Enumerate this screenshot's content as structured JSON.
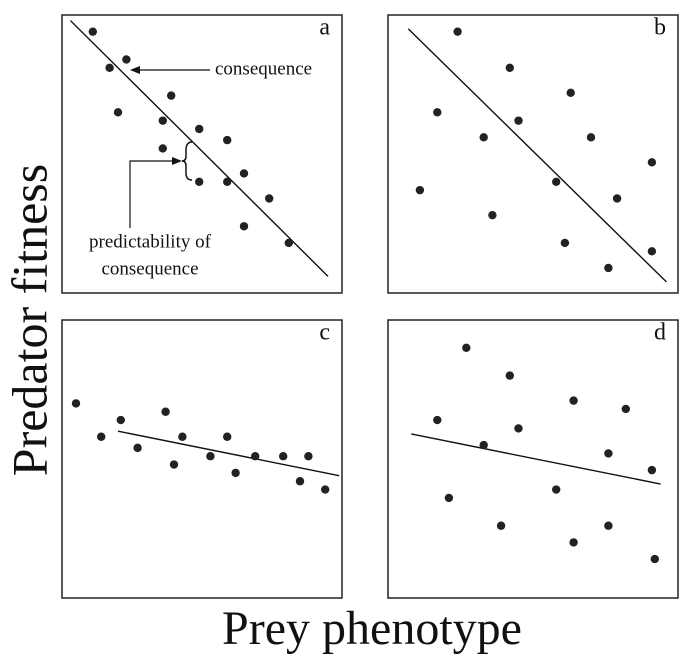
{
  "figure": {
    "y_label": "Predator fitness",
    "x_label": "Prey phenotype"
  },
  "chart_data": [
    {
      "type": "scatter",
      "label": "a",
      "color": "#222",
      "xlim": [
        0,
        100
      ],
      "ylim": [
        0,
        100
      ],
      "x": [
        11,
        17,
        23,
        20,
        39,
        36,
        49,
        36,
        59,
        49,
        59,
        65,
        74,
        65,
        81
      ],
      "y": [
        94,
        81,
        84,
        65,
        71,
        62,
        59,
        52,
        55,
        40,
        40,
        43,
        34,
        24,
        18
      ],
      "fit_line": {
        "x": [
          3,
          95
        ],
        "y": [
          98,
          6
        ]
      },
      "annotations": {
        "consequence": "consequence",
        "predictability": [
          "predictability of",
          "consequence"
        ]
      }
    },
    {
      "type": "scatter",
      "label": "b",
      "color": "#222",
      "xlim": [
        0,
        100
      ],
      "ylim": [
        0,
        100
      ],
      "x": [
        24,
        42,
        17,
        45,
        63,
        33,
        70,
        11,
        58,
        91,
        36,
        79,
        61,
        76,
        91
      ],
      "y": [
        94,
        81,
        65,
        62,
        72,
        56,
        56,
        37,
        40,
        47,
        28,
        34,
        18,
        9,
        15
      ],
      "fit_line": {
        "x": [
          7,
          96
        ],
        "y": [
          95,
          4
        ]
      }
    },
    {
      "type": "scatter",
      "label": "c",
      "color": "#222",
      "xlim": [
        0,
        100
      ],
      "ylim": [
        0,
        100
      ],
      "x": [
        5,
        14,
        21,
        27,
        37,
        43,
        40,
        53,
        59,
        62,
        69,
        79,
        88,
        85,
        94
      ],
      "y": [
        70,
        58,
        64,
        54,
        67,
        58,
        48,
        51,
        58,
        45,
        51,
        51,
        51,
        42,
        39
      ],
      "fit_line": {
        "x": [
          20,
          99
        ],
        "y": [
          60,
          44
        ]
      }
    },
    {
      "type": "scatter",
      "label": "d",
      "color": "#222",
      "xlim": [
        0,
        100
      ],
      "ylim": [
        0,
        100
      ],
      "x": [
        27,
        42,
        17,
        45,
        64,
        33,
        82,
        76,
        21,
        58,
        91,
        39,
        76,
        64,
        92
      ],
      "y": [
        90,
        80,
        64,
        61,
        71,
        55,
        68,
        52,
        36,
        39,
        46,
        26,
        26,
        20,
        14
      ],
      "fit_line": {
        "x": [
          8,
          94
        ],
        "y": [
          59,
          41
        ]
      }
    }
  ]
}
